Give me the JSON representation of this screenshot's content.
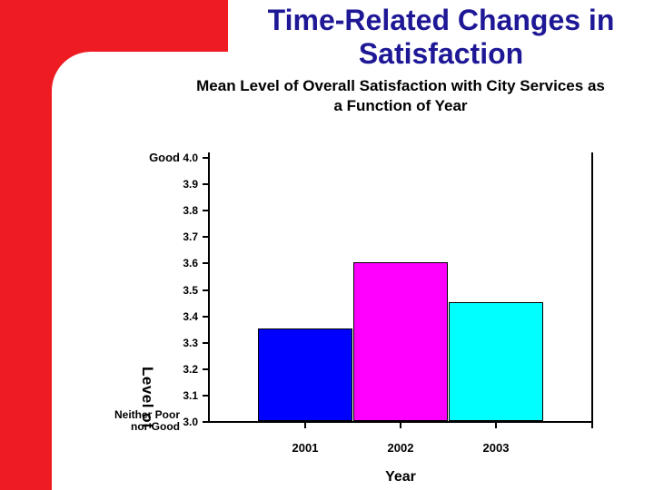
{
  "slide": {
    "title": "Time-Related Changes in Satisfaction"
  },
  "colors": {
    "accent_red": "#EE1B22",
    "title_blue": "#1E1896",
    "axis_black": "#000000"
  },
  "chart_data": {
    "type": "bar",
    "title": "Mean Level of Overall Satisfaction with City Services as a Function of Year",
    "categories": [
      "2001",
      "2002",
      "2003"
    ],
    "values": [
      3.35,
      3.6,
      3.45
    ],
    "bar_colors": [
      "#0000FF",
      "#FF00FF",
      "#00FFFF"
    ],
    "xlabel": "Year",
    "ylabel": "Level of Satisfaction",
    "ylim": [
      3.0,
      4.0
    ],
    "yticks": [
      "4.0",
      "3.9",
      "3.8",
      "3.7",
      "3.6",
      "3.5",
      "3.4",
      "3.3",
      "3.2",
      "3.1",
      "3.0"
    ],
    "y_annotations": {
      "top": "Good",
      "bottom_lines": [
        "Neither Poor",
        "nor Good"
      ]
    },
    "grid": false,
    "legend": "none"
  }
}
